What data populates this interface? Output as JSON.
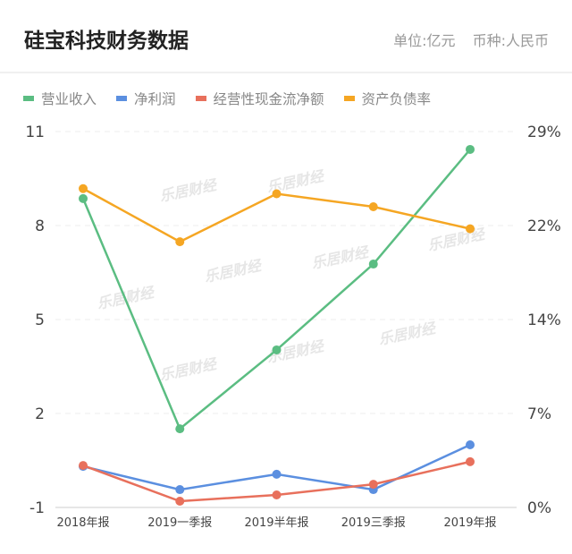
{
  "header": {
    "title": "硅宝科技财务数据",
    "unit": "单位:亿元",
    "currency": "币种:人民币"
  },
  "watermark": "乐居财经",
  "chart_data": {
    "type": "line",
    "categories": [
      "2018年报",
      "2019一季报",
      "2019半年报",
      "2019三季报",
      "2019年报"
    ],
    "left_axis": {
      "ylim": [
        -1,
        11
      ],
      "ticks": [
        "11",
        "8",
        "5",
        "2",
        "-1"
      ]
    },
    "right_axis": {
      "ylim": [
        0,
        29
      ],
      "ticks": [
        "29%",
        "22%",
        "14%",
        "7%",
        "0%"
      ]
    },
    "grid": true,
    "legend_position": "top-left",
    "series": [
      {
        "name": "营业收入",
        "color": "#5bbd82",
        "axis": "left",
        "values": [
          8.86,
          1.51,
          4.03,
          6.77,
          10.43
        ]
      },
      {
        "name": "净利润",
        "color": "#5b8fe0",
        "axis": "left",
        "values": [
          0.31,
          -0.43,
          0.06,
          -0.43,
          1.0
        ]
      },
      {
        "name": "经营性现金流净额",
        "color": "#e8705c",
        "axis": "left",
        "values": [
          0.34,
          -0.8,
          -0.6,
          -0.26,
          0.46
        ]
      },
      {
        "name": "资产负债率",
        "color": "#f5a623",
        "axis": "right",
        "values": [
          24.6,
          20.5,
          24.2,
          23.2,
          21.5
        ]
      }
    ]
  }
}
